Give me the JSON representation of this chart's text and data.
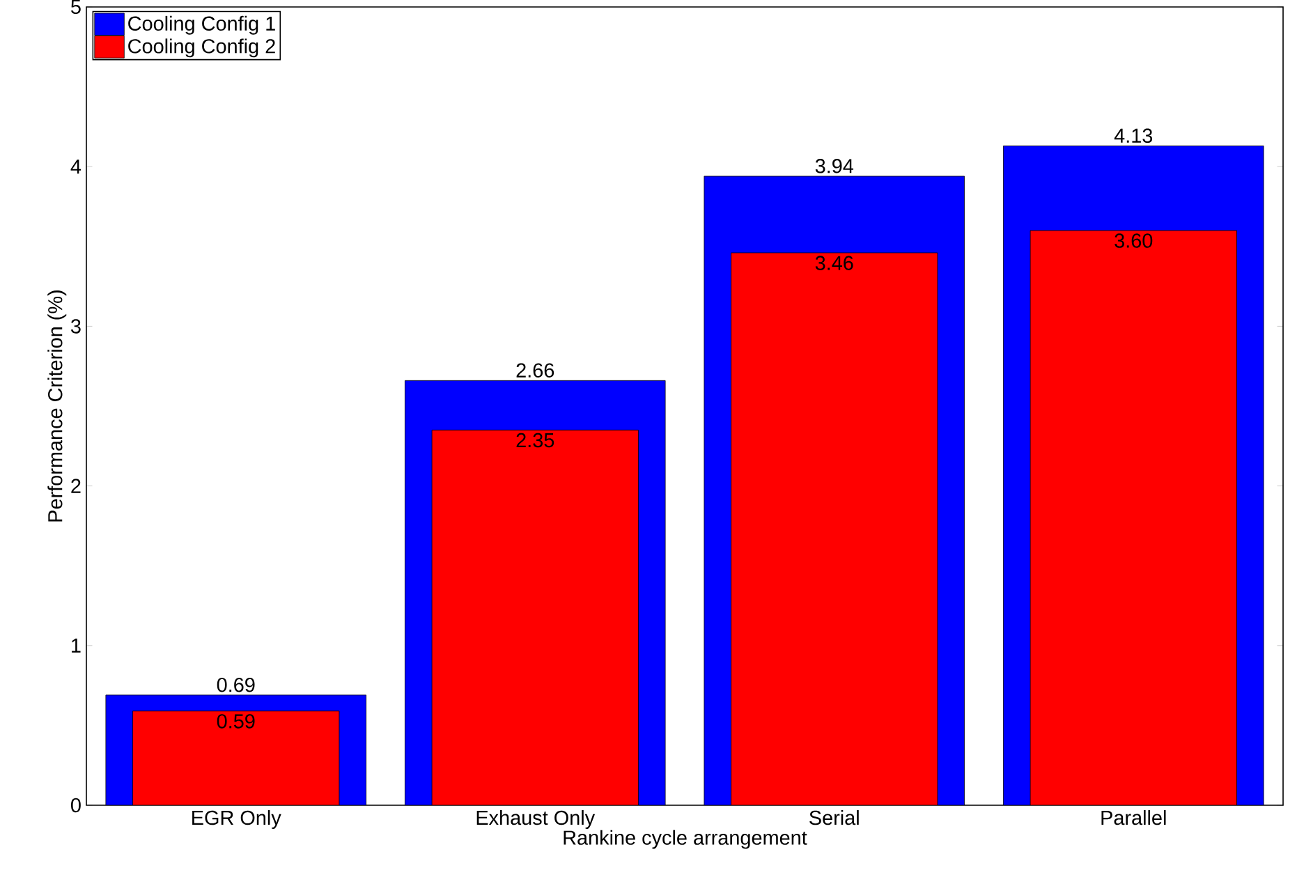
{
  "chart_data": {
    "type": "bar",
    "xlabel": "Rankine cycle arrangement",
    "ylabel": "Performance Criterion (%)",
    "categories": [
      "EGR Only",
      "Exhaust Only",
      "Serial",
      "Parallel"
    ],
    "series": [
      {
        "name": "Cooling Config 1",
        "color": "#0000ff",
        "values": [
          0.69,
          2.66,
          3.94,
          4.13
        ],
        "value_labels": [
          "0.69",
          "2.66",
          "3.94",
          "4.13"
        ]
      },
      {
        "name": "Cooling Config 2",
        "color": "#ff0000",
        "values": [
          0.59,
          2.35,
          3.46,
          3.6
        ],
        "value_labels": [
          "0.59",
          "2.35",
          "3.46",
          "3.60"
        ]
      }
    ],
    "ylim": [
      0,
      5
    ],
    "yticks": [
      0,
      1,
      2,
      3,
      4,
      5
    ],
    "legend": "top left",
    "grid": false
  }
}
